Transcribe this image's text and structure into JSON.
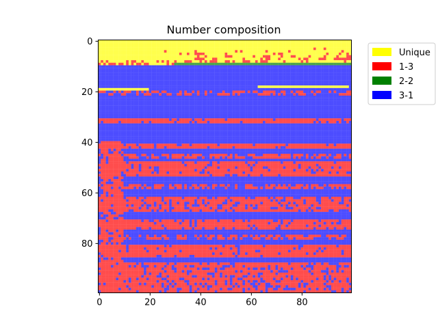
{
  "chart_data": {
    "type": "heatmap",
    "title": "Number composition",
    "xlabel": "",
    "ylabel": "",
    "grid_size": [
      100,
      100
    ],
    "xlim": [
      0,
      99
    ],
    "ylim": [
      99,
      0
    ],
    "x_ticks": [
      0,
      20,
      40,
      60,
      80
    ],
    "y_ticks": [
      0,
      20,
      40,
      60,
      80
    ],
    "grid": false,
    "legend_position": "upper right outside",
    "categories": [
      {
        "name": "Unique",
        "color": "#ffff00"
      },
      {
        "name": "1-3",
        "color": "#ff0000"
      },
      {
        "name": "2-2",
        "color": "#008000"
      },
      {
        "name": "3-1",
        "color": "#0000ff"
      }
    ],
    "display_alpha": 0.7,
    "structure_description_rows": {
      "rows_0_8": "mostly Unique with scattered 1-3 cells along lower edge",
      "row_9": "2-2 band from column ~30 to 99",
      "rows_10_99": "mostly 3-1 with horizontal 1-3 bands at rows ~20, 31-32, 41-42, 45, 48-53, 57-58, 62-67, 71-74, 81-85, 88-99",
      "column_0_9_block": "1-3 blocks in columns 1-9 within lower bands"
    }
  }
}
